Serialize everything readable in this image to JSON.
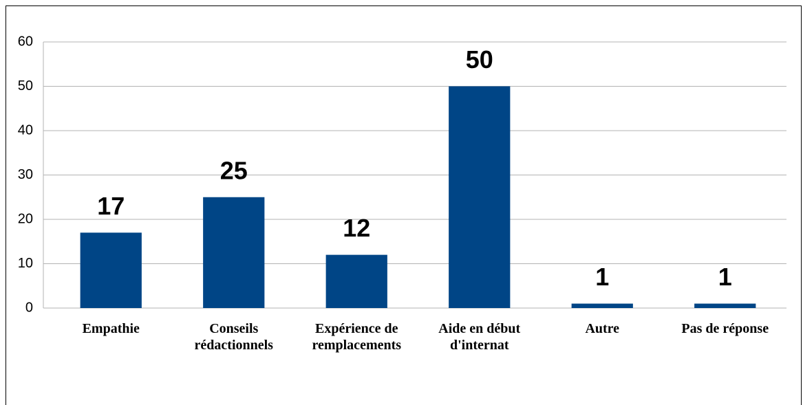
{
  "chart_data": {
    "type": "bar",
    "categories": [
      "Empathie",
      "Conseils rédactionnels",
      "Expérience de remplacements",
      "Aide en début d'internat",
      "Autre",
      "Pas de réponse"
    ],
    "values": [
      17,
      25,
      12,
      50,
      1,
      1
    ],
    "color": "#004586",
    "ylim": [
      0,
      60
    ],
    "yticks": [
      0,
      10,
      20,
      30,
      40,
      50,
      60
    ],
    "grid": true
  }
}
